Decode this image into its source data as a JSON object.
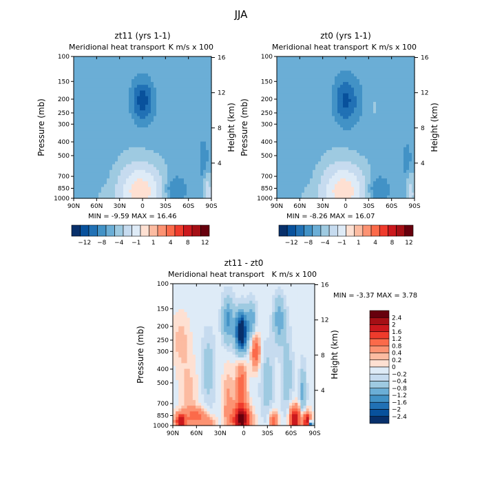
{
  "page": {
    "title": "JJA"
  },
  "chart_data": [
    {
      "type": "heatmap",
      "title": "zt11 (yrs 1-1)",
      "subtitle_left": "Meridional heat transport",
      "subtitle_right": "K m/s x 100",
      "xlabel": "",
      "ylabel": "Pressure (mb)",
      "ylabel_right": "Height (km)",
      "x_ticks": [
        "90N",
        "60N",
        "30N",
        "0",
        "30S",
        "60S",
        "90S"
      ],
      "y_ticks": [
        100,
        150,
        200,
        250,
        300,
        400,
        500,
        700,
        850,
        1000
      ],
      "y_right_ticks": [
        16,
        12,
        8,
        4
      ],
      "xlim": [
        90,
        -90
      ],
      "ylim": [
        1000,
        100
      ],
      "y_scale": "log",
      "stats_text": "MIN =  -9.59   MAX =  16.46",
      "min": -9.59,
      "max": 16.46,
      "colorbar": {
        "orientation": "horizontal",
        "labels": [
          "-12",
          "-8",
          "-4",
          "-1",
          "1",
          "4",
          "8",
          "12"
        ],
        "colors": [
          "#08306b",
          "#08519c",
          "#2171b5",
          "#4292c6",
          "#6baed6",
          "#9ecae1",
          "#c6dbef",
          "#deebf7",
          "#fee0d2",
          "#fcbba1",
          "#fc9272",
          "#fb6a4a",
          "#ef3b2c",
          "#cb181d",
          "#a50f15",
          "#67000d"
        ]
      },
      "features": [
        {
          "x": 0,
          "p": 205,
          "v": -10.5,
          "sx": 9,
          "sy": 0.2
        },
        {
          "x": 3,
          "p": 900,
          "v": 15,
          "sx": 20,
          "sy": 0.32
        },
        {
          "x": -40,
          "p": 860,
          "v": -4,
          "sx": 10,
          "sy": 0.14
        },
        {
          "x": -85,
          "p": 920,
          "v": 7,
          "sx": 4,
          "sy": 0.22
        },
        {
          "x": -80,
          "p": 550,
          "v": -2.2,
          "sx": 4,
          "sy": 0.22
        },
        {
          "x": 20,
          "p": 240,
          "v": 0.7,
          "sx": 10,
          "sy": 0.45
        },
        {
          "x": -25,
          "p": 190,
          "v": 0.6,
          "sx": 15,
          "sy": 0.4
        },
        {
          "x": 55,
          "p": 950,
          "v": 0.9,
          "sx": 25,
          "sy": 0.12
        },
        {
          "x": 70,
          "p": 180,
          "v": -0.3,
          "sx": 20,
          "sy": 0.4
        }
      ],
      "base_value": -0.3
    },
    {
      "type": "heatmap",
      "title": "zt0 (yrs 1-1)",
      "subtitle_left": "Meridional heat transport",
      "subtitle_right": "K m/s x 100",
      "xlabel": "",
      "ylabel": "Pressure (mb)",
      "ylabel_right": "Height (km)",
      "x_ticks": [
        "90N",
        "60N",
        "30N",
        "0",
        "30S",
        "60S",
        "90S"
      ],
      "y_ticks": [
        100,
        150,
        200,
        250,
        300,
        400,
        500,
        700,
        850,
        1000
      ],
      "y_right_ticks": [
        16,
        12,
        8,
        4
      ],
      "xlim": [
        90,
        -90
      ],
      "ylim": [
        1000,
        100
      ],
      "y_scale": "log",
      "stats_text": "MIN =  -8.26   MAX =  16.07",
      "min": -8.26,
      "max": 16.07,
      "colorbar": {
        "orientation": "horizontal",
        "labels": [
          "-12",
          "-8",
          "-4",
          "-1",
          "1",
          "4",
          "8",
          "12"
        ],
        "colors": [
          "#08306b",
          "#08519c",
          "#2171b5",
          "#4292c6",
          "#6baed6",
          "#9ecae1",
          "#c6dbef",
          "#deebf7",
          "#fee0d2",
          "#fcbba1",
          "#fc9272",
          "#fb6a4a",
          "#ef3b2c",
          "#cb181d",
          "#a50f15",
          "#67000d"
        ]
      },
      "features": [
        {
          "x": 0,
          "p": 205,
          "v": -9,
          "sx": 10,
          "sy": 0.22
        },
        {
          "x": 3,
          "p": 900,
          "v": 15,
          "sx": 20,
          "sy": 0.32
        },
        {
          "x": -40,
          "p": 860,
          "v": -4,
          "sx": 10,
          "sy": 0.14
        },
        {
          "x": -85,
          "p": 920,
          "v": 6,
          "sx": 4,
          "sy": 0.22
        },
        {
          "x": -80,
          "p": 560,
          "v": -2,
          "sx": 4,
          "sy": 0.2
        },
        {
          "x": -38,
          "p": 230,
          "v": 1.5,
          "sx": 6,
          "sy": 0.2
        },
        {
          "x": 20,
          "p": 240,
          "v": 0.7,
          "sx": 10,
          "sy": 0.45
        },
        {
          "x": 55,
          "p": 950,
          "v": 0.9,
          "sx": 25,
          "sy": 0.12
        },
        {
          "x": 80,
          "p": 250,
          "v": 0.5,
          "sx": 10,
          "sy": 0.4
        }
      ],
      "base_value": -0.3
    },
    {
      "type": "heatmap",
      "title": "zt11 - zt0",
      "subtitle_left": "Meridional heat transport",
      "subtitle_right": "K m/s x 100",
      "xlabel": "",
      "ylabel": "Pressure (mb)",
      "ylabel_right": "Height (km)",
      "x_ticks": [
        "90N",
        "60N",
        "30N",
        "0",
        "30S",
        "60S",
        "90S"
      ],
      "y_ticks": [
        100,
        150,
        200,
        250,
        300,
        400,
        500,
        700,
        850,
        1000
      ],
      "y_right_ticks": [
        16,
        12,
        8,
        4
      ],
      "xlim": [
        90,
        -90
      ],
      "ylim": [
        1000,
        100
      ],
      "y_scale": "log",
      "stats_text": "MIN =  -3.37   MAX =   3.78",
      "min": -3.37,
      "max": 3.78,
      "colorbar": {
        "orientation": "vertical",
        "labels": [
          "2.4",
          "2",
          "1.6",
          "1.2",
          "0.8",
          "0.4",
          "0.2",
          "0",
          "-0.2",
          "-0.4",
          "-0.8",
          "-1.2",
          "-1.6",
          "-2",
          "-2.4"
        ],
        "colors": [
          "#67000d",
          "#a50f15",
          "#cb181d",
          "#ef3b2c",
          "#fb6a4a",
          "#fc9272",
          "#fcbba1",
          "#fee0d2",
          "#deebf7",
          "#c6dbef",
          "#9ecae1",
          "#6baed6",
          "#4292c6",
          "#2171b5",
          "#08519c",
          "#08306b"
        ]
      },
      "features": [
        {
          "x": 3,
          "p": 220,
          "v": -3.3,
          "sx": 5,
          "sy": 0.22
        },
        {
          "x": 3,
          "p": 920,
          "v": 2.4,
          "sx": 8,
          "sy": 0.15
        },
        {
          "x": 3,
          "p": 560,
          "v": 1.2,
          "sx": 5,
          "sy": 0.35
        },
        {
          "x": 20,
          "p": 180,
          "v": -1.2,
          "sx": 5,
          "sy": 0.25
        },
        {
          "x": 20,
          "p": 700,
          "v": 0.6,
          "sx": 5,
          "sy": 0.4
        },
        {
          "x": -15,
          "p": 300,
          "v": 1.2,
          "sx": 4,
          "sy": 0.2
        },
        {
          "x": -10,
          "p": 180,
          "v": -1.0,
          "sx": 4,
          "sy": 0.2
        },
        {
          "x": -30,
          "p": 500,
          "v": -0.5,
          "sx": 6,
          "sy": 0.4
        },
        {
          "x": -45,
          "p": 180,
          "v": -1.0,
          "sx": 5,
          "sy": 0.25
        },
        {
          "x": -55,
          "p": 450,
          "v": -0.5,
          "sx": 5,
          "sy": 0.5
        },
        {
          "x": 80,
          "p": 940,
          "v": 2.0,
          "sx": 5,
          "sy": 0.1
        },
        {
          "x": 60,
          "p": 860,
          "v": 1.0,
          "sx": 8,
          "sy": 0.1
        },
        {
          "x": 45,
          "p": 960,
          "v": 0.8,
          "sx": 6,
          "sy": 0.08
        },
        {
          "x": 70,
          "p": 600,
          "v": 0.4,
          "sx": 8,
          "sy": 0.4
        },
        {
          "x": 45,
          "p": 400,
          "v": -0.5,
          "sx": 6,
          "sy": 0.4
        },
        {
          "x": -65,
          "p": 900,
          "v": 2.2,
          "sx": 5,
          "sy": 0.15
        },
        {
          "x": -80,
          "p": 940,
          "v": 2.0,
          "sx": 4,
          "sy": 0.12
        },
        {
          "x": -85,
          "p": 990,
          "v": -3.0,
          "sx": 2,
          "sy": 0.04
        },
        {
          "x": -38,
          "p": 950,
          "v": 1.2,
          "sx": 4,
          "sy": 0.12
        },
        {
          "x": -75,
          "p": 600,
          "v": -0.9,
          "sx": 3,
          "sy": 0.3
        },
        {
          "x": 80,
          "p": 250,
          "v": 0.4,
          "sx": 8,
          "sy": 0.3
        }
      ],
      "base_value": -0.1
    }
  ]
}
